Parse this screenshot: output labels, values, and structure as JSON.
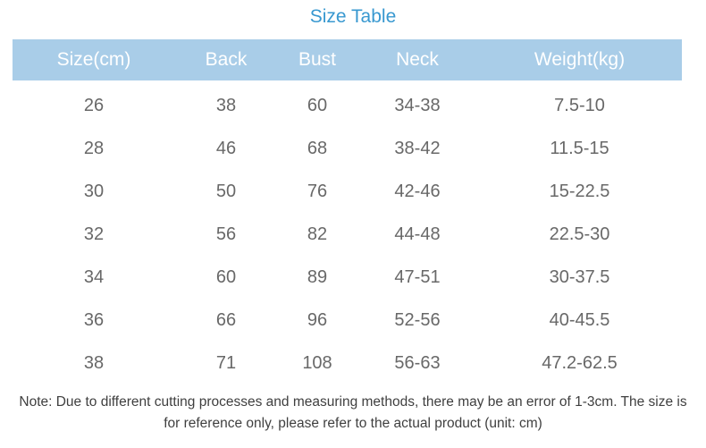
{
  "page": {
    "title": "Size Table"
  },
  "colors": {
    "title": "#3898d0",
    "header_bg": "#a9cde8",
    "header_text": "#ffffff",
    "body_text": "#686868",
    "note_text": "#3f3f3f"
  },
  "table": {
    "columns": [
      "Size(cm)",
      "Back",
      "Bust",
      "Neck",
      "Weight(kg)"
    ],
    "rows": [
      [
        "26",
        "38",
        "60",
        "34-38",
        "7.5-10"
      ],
      [
        "28",
        "46",
        "68",
        "38-42",
        "11.5-15"
      ],
      [
        "30",
        "50",
        "76",
        "42-46",
        "15-22.5"
      ],
      [
        "32",
        "56",
        "82",
        "44-48",
        "22.5-30"
      ],
      [
        "34",
        "60",
        "89",
        "47-51",
        "30-37.5"
      ],
      [
        "36",
        "66",
        "96",
        "52-56",
        "40-45.5"
      ],
      [
        "38",
        "71",
        "108",
        "56-63",
        "47.2-62.5"
      ]
    ]
  },
  "note": "Note: Due to different cutting processes and measuring methods, there may be an error of 1-3cm. The size is for reference only, please refer to the actual product (unit: cm)",
  "chart_data": {
    "type": "table",
    "title": "Size Table",
    "columns": [
      "Size(cm)",
      "Back",
      "Bust",
      "Neck",
      "Weight(kg)"
    ],
    "rows": [
      [
        26,
        38,
        60,
        "34-38",
        "7.5-10"
      ],
      [
        28,
        46,
        68,
        "38-42",
        "11.5-15"
      ],
      [
        30,
        50,
        76,
        "42-46",
        "15-22.5"
      ],
      [
        32,
        56,
        82,
        "44-48",
        "22.5-30"
      ],
      [
        34,
        60,
        89,
        "47-51",
        "30-37.5"
      ],
      [
        36,
        66,
        96,
        "52-56",
        "40-45.5"
      ],
      [
        38,
        71,
        108,
        "56-63",
        "47.2-62.5"
      ]
    ],
    "footnote": "Note: Due to different cutting processes and measuring methods, there may be an error of 1-3cm. The size is for reference only, please refer to the actual product (unit: cm)",
    "layout": {
      "header_style": "white text on light blue band",
      "row_separators": false,
      "alignment": "center"
    }
  }
}
